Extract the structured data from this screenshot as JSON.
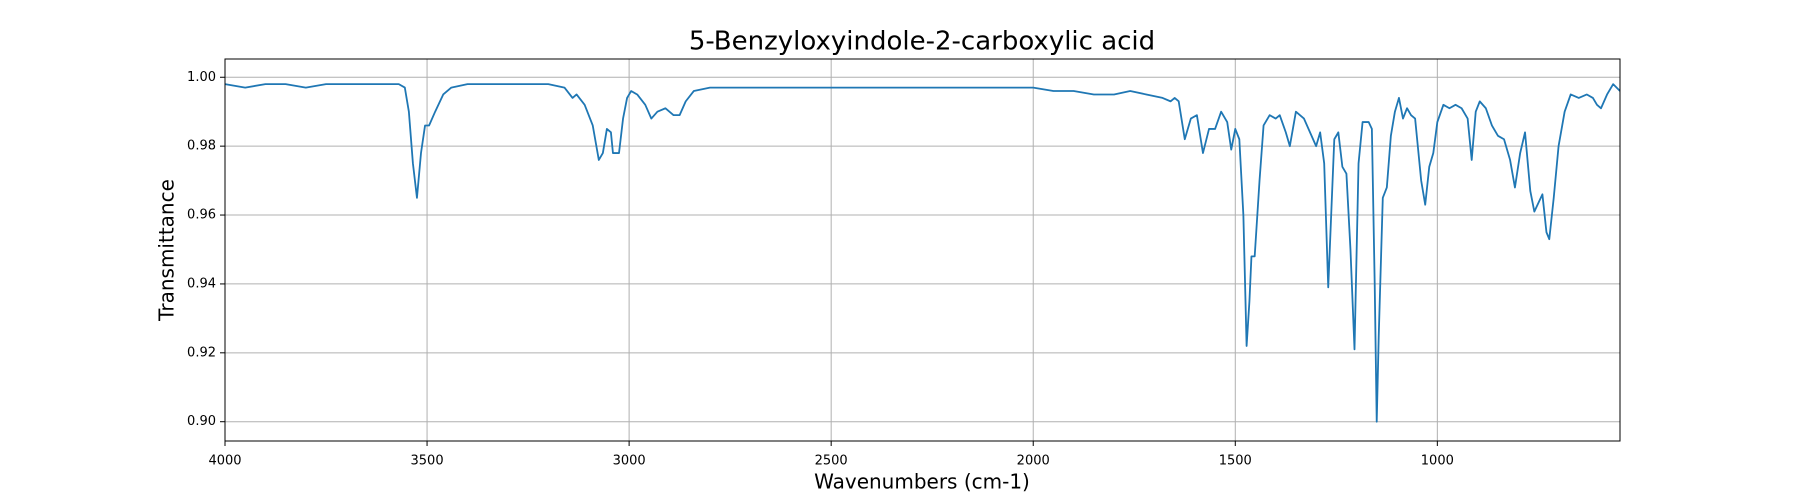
{
  "chart_data": {
    "type": "line",
    "title": "5-Benzyloxyindole-2-carboxylic acid",
    "x_label": "Wavenumbers (cm-1)",
    "y_label": "Transmittance",
    "xlim": [
      4000,
      548
    ],
    "ylim": [
      0.8944,
      1.0053
    ],
    "xticks": [
      4000,
      3500,
      3000,
      2500,
      2000,
      1500,
      1000
    ],
    "yticks": [
      {
        "value": 0.9,
        "label": "0.90"
      },
      0.92,
      0.94,
      0.96,
      0.98,
      {
        "value": 1,
        "label": "1.00"
      }
    ],
    "grid": true,
    "series": [
      {
        "color": "#1f77b4",
        "x": [
          4000,
          3950,
          3900,
          3850,
          3800,
          3750,
          3700,
          3650,
          3600,
          3570,
          3555,
          3545,
          3535,
          3525,
          3515,
          3505,
          3495,
          3480,
          3460,
          3440,
          3400,
          3350,
          3300,
          3250,
          3200,
          3160,
          3140,
          3130,
          3110,
          3090,
          3075,
          3065,
          3055,
          3045,
          3040,
          3025,
          3015,
          3005,
          2995,
          2980,
          2960,
          2945,
          2930,
          2910,
          2890,
          2875,
          2860,
          2840,
          2800,
          2700,
          2600,
          2500,
          2400,
          2300,
          2200,
          2100,
          2000,
          1950,
          1900,
          1850,
          1800,
          1760,
          1720,
          1680,
          1660,
          1650,
          1640,
          1625,
          1610,
          1595,
          1580,
          1565,
          1550,
          1535,
          1520,
          1510,
          1500,
          1490,
          1480,
          1472,
          1465,
          1460,
          1452,
          1440,
          1430,
          1415,
          1400,
          1390,
          1375,
          1365,
          1350,
          1330,
          1315,
          1300,
          1290,
          1280,
          1270,
          1262,
          1255,
          1245,
          1235,
          1225,
          1215,
          1205,
          1195,
          1185,
          1170,
          1162,
          1155,
          1150,
          1145,
          1135,
          1125,
          1115,
          1105,
          1095,
          1085,
          1075,
          1065,
          1055,
          1040,
          1030,
          1020,
          1010,
          1000,
          985,
          970,
          955,
          940,
          925,
          915,
          905,
          895,
          880,
          865,
          850,
          835,
          820,
          808,
          795,
          783,
          770,
          760,
          748,
          740,
          730,
          723,
          712,
          700,
          685,
          670,
          650,
          630,
          615,
          605,
          595,
          580,
          565,
          548
        ],
        "values": [
          0.998,
          0.997,
          0.998,
          0.998,
          0.997,
          0.998,
          0.998,
          0.998,
          0.998,
          0.998,
          0.997,
          0.99,
          0.975,
          0.965,
          0.978,
          0.986,
          0.986,
          0.99,
          0.995,
          0.997,
          0.998,
          0.998,
          0.998,
          0.998,
          0.998,
          0.997,
          0.994,
          0.995,
          0.992,
          0.986,
          0.976,
          0.978,
          0.985,
          0.984,
          0.978,
          0.978,
          0.988,
          0.994,
          0.996,
          0.995,
          0.992,
          0.988,
          0.99,
          0.991,
          0.989,
          0.989,
          0.993,
          0.996,
          0.997,
          0.997,
          0.997,
          0.997,
          0.997,
          0.997,
          0.997,
          0.997,
          0.997,
          0.996,
          0.996,
          0.995,
          0.995,
          0.996,
          0.995,
          0.994,
          0.993,
          0.994,
          0.993,
          0.982,
          0.988,
          0.989,
          0.978,
          0.985,
          0.985,
          0.99,
          0.987,
          0.979,
          0.985,
          0.982,
          0.96,
          0.922,
          0.935,
          0.948,
          0.948,
          0.97,
          0.986,
          0.989,
          0.988,
          0.989,
          0.984,
          0.98,
          0.99,
          0.988,
          0.984,
          0.98,
          0.984,
          0.975,
          0.939,
          0.962,
          0.982,
          0.984,
          0.974,
          0.972,
          0.95,
          0.921,
          0.975,
          0.987,
          0.987,
          0.985,
          0.94,
          0.9,
          0.925,
          0.965,
          0.968,
          0.983,
          0.99,
          0.994,
          0.988,
          0.991,
          0.989,
          0.988,
          0.97,
          0.963,
          0.974,
          0.978,
          0.987,
          0.992,
          0.991,
          0.992,
          0.991,
          0.988,
          0.976,
          0.99,
          0.993,
          0.991,
          0.986,
          0.983,
          0.982,
          0.976,
          0.968,
          0.978,
          0.984,
          0.967,
          0.961,
          0.964,
          0.966,
          0.955,
          0.953,
          0.965,
          0.98,
          0.99,
          0.995,
          0.994,
          0.995,
          0.994,
          0.992,
          0.991,
          0.995,
          0.998,
          0.996
        ]
      }
    ]
  }
}
